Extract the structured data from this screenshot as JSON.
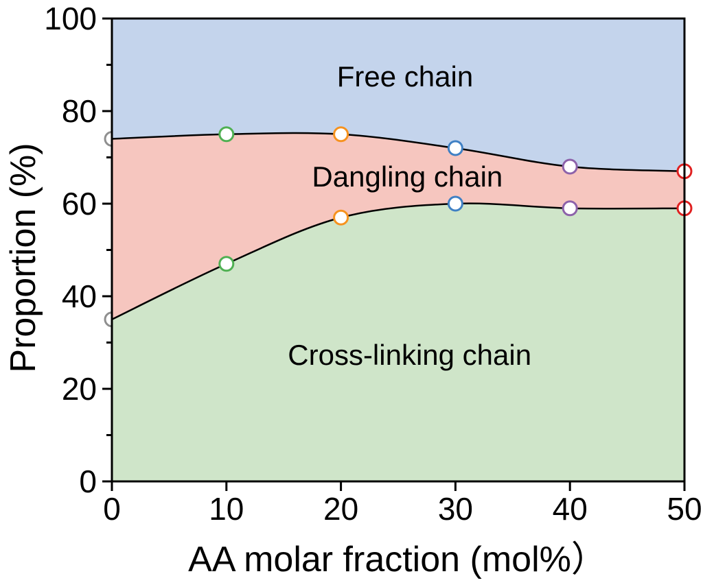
{
  "chart_data": {
    "type": "area",
    "stacked": true,
    "title": "",
    "xlabel": "AA molar fraction (mol%）",
    "ylabel": "Proportion (%)",
    "x": [
      0,
      10,
      20,
      30,
      40,
      50
    ],
    "xlim": [
      0,
      50
    ],
    "ylim": [
      0,
      100
    ],
    "x_ticks": [
      0,
      10,
      20,
      30,
      40,
      50
    ],
    "x_tick_labels": [
      "0",
      "10",
      "20",
      "30",
      "40",
      "50"
    ],
    "y_major_ticks": [
      0,
      20,
      40,
      60,
      80,
      100
    ],
    "y_tick_labels": [
      "0",
      "20",
      "40",
      "60",
      "80",
      "100"
    ],
    "y_minor_ticks": [
      10,
      30,
      50,
      70,
      90
    ],
    "grid": false,
    "series": [
      {
        "name": "Cross-linking chain",
        "values": [
          35,
          47,
          57,
          60,
          59,
          59
        ],
        "stack_top": [
          35,
          47,
          57,
          60,
          59,
          59
        ],
        "fill": "#cfe5c9"
      },
      {
        "name": "Dangling chain",
        "values": [
          39,
          28,
          18,
          12,
          9,
          8
        ],
        "stack_top": [
          74,
          75,
          75,
          72,
          68,
          67
        ],
        "fill": "#f6c6bf"
      },
      {
        "name": "Free chain",
        "values": [
          26,
          25,
          25,
          28,
          32,
          33
        ],
        "stack_top": [
          100,
          100,
          100,
          100,
          100,
          100
        ],
        "fill": "#c4d4ec"
      }
    ],
    "boundary_line": {
      "color": "#000000",
      "width": 2.5
    },
    "markers": {
      "radius": 10,
      "stroke_width": 3,
      "fill": "#ffffff",
      "colors_by_x": [
        "#8f8f8f",
        "#4fb052",
        "#f6921e",
        "#3f80c4",
        "#8d62aa",
        "#e02020"
      ]
    },
    "annotations": [
      {
        "text": "Free chain",
        "x": 25.6,
        "y": 87.4
      },
      {
        "text": "Dangling chain",
        "x": 25.8,
        "y": 65.8
      },
      {
        "text": "Cross-linking chain",
        "x": 26.0,
        "y": 27.3
      }
    ],
    "axis_color": "#000000",
    "tick_label_font_px": 46
  }
}
